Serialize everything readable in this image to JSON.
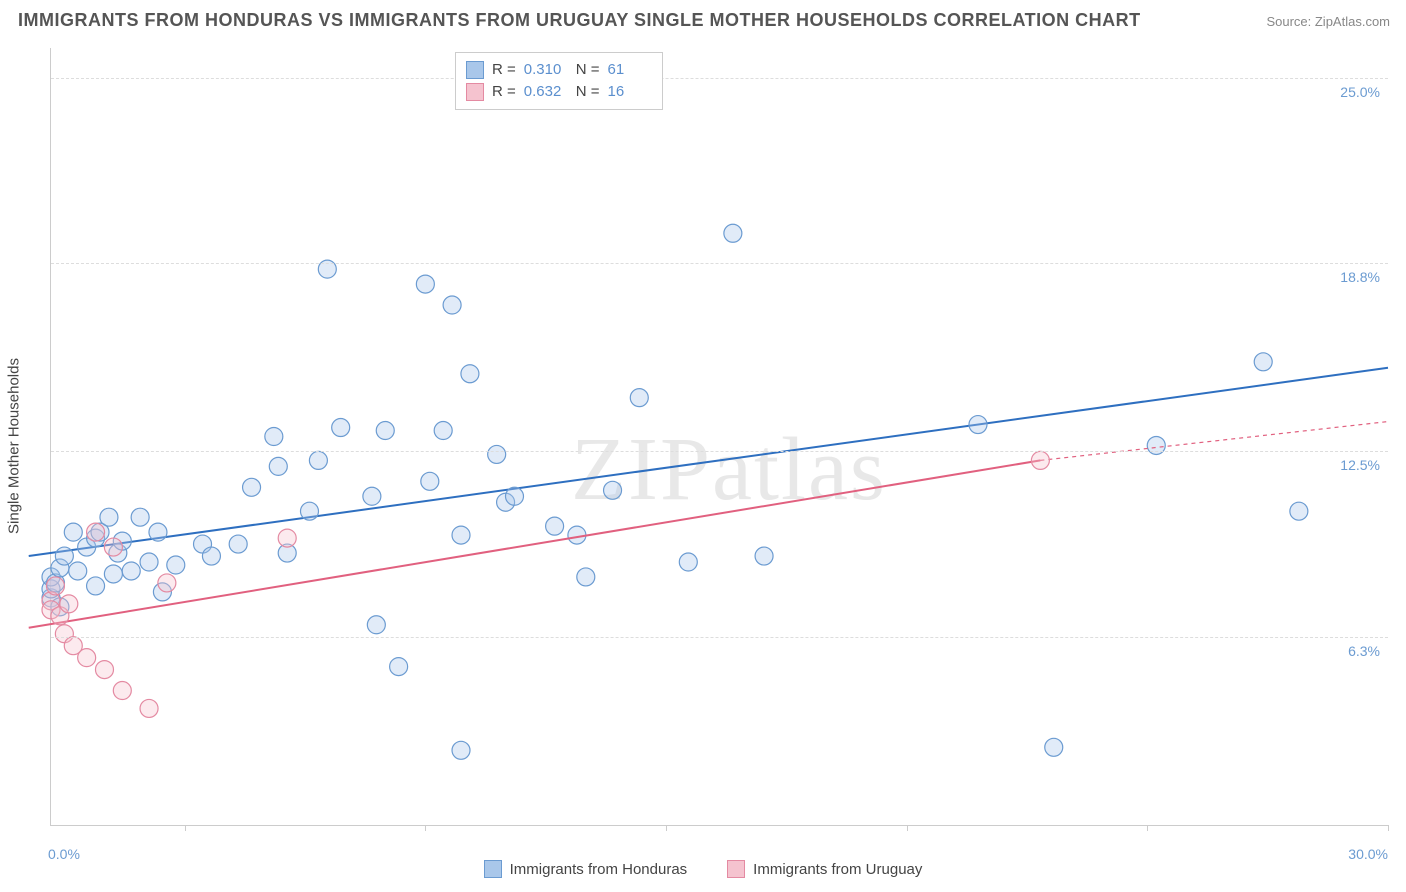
{
  "title": "IMMIGRANTS FROM HONDURAS VS IMMIGRANTS FROM URUGUAY SINGLE MOTHER HOUSEHOLDS CORRELATION CHART",
  "source": "Source: ZipAtlas.com",
  "watermark": "ZIPatlas",
  "yaxis_title": "Single Mother Households",
  "chart": {
    "type": "scatter",
    "background_color": "#ffffff",
    "grid_color": "#dddddd",
    "axis_color": "#cccccc",
    "xlim": [
      0,
      30
    ],
    "ylim": [
      0,
      26
    ],
    "xtick_positions": [
      3.0,
      8.4,
      13.8,
      19.2,
      24.6,
      30.0
    ],
    "yticks": [
      {
        "v": 6.3,
        "label": "6.3%"
      },
      {
        "v": 12.5,
        "label": "12.5%"
      },
      {
        "v": 18.8,
        "label": "18.8%"
      },
      {
        "v": 25.0,
        "label": "25.0%"
      }
    ],
    "xlim_labels": {
      "min": "0.0%",
      "max": "30.0%"
    },
    "marker_radius": 9,
    "marker_fill_opacity": 0.35,
    "marker_stroke_width": 1.2,
    "line_width": 2,
    "series": [
      {
        "name": "Immigrants from Honduras",
        "color_fill": "#a9c7ea",
        "color_stroke": "#6b9bd1",
        "line_color": "#2e6fc0",
        "R": "0.310",
        "N": "61",
        "trend": {
          "x1": -0.5,
          "y1": 9.0,
          "x2": 30.0,
          "y2": 15.3,
          "dash_from_x": 30.0
        },
        "points": [
          [
            0.0,
            7.6
          ],
          [
            0.0,
            7.9
          ],
          [
            0.0,
            8.3
          ],
          [
            0.1,
            8.1
          ],
          [
            0.2,
            7.3
          ],
          [
            0.2,
            8.6
          ],
          [
            0.3,
            9.0
          ],
          [
            0.5,
            9.8
          ],
          [
            0.6,
            8.5
          ],
          [
            0.8,
            9.3
          ],
          [
            1.0,
            9.6
          ],
          [
            1.0,
            8.0
          ],
          [
            1.1,
            9.8
          ],
          [
            1.3,
            10.3
          ],
          [
            1.4,
            8.4
          ],
          [
            1.5,
            9.1
          ],
          [
            1.6,
            9.5
          ],
          [
            1.8,
            8.5
          ],
          [
            2.0,
            10.3
          ],
          [
            2.2,
            8.8
          ],
          [
            2.4,
            9.8
          ],
          [
            2.5,
            7.8
          ],
          [
            2.8,
            8.7
          ],
          [
            3.4,
            9.4
          ],
          [
            3.6,
            9.0
          ],
          [
            4.2,
            9.4
          ],
          [
            4.5,
            11.3
          ],
          [
            5.0,
            13.0
          ],
          [
            5.1,
            12.0
          ],
          [
            5.3,
            9.1
          ],
          [
            5.8,
            10.5
          ],
          [
            6.0,
            12.2
          ],
          [
            6.2,
            18.6
          ],
          [
            6.5,
            13.3
          ],
          [
            7.2,
            11.0
          ],
          [
            7.3,
            6.7
          ],
          [
            7.5,
            13.2
          ],
          [
            7.8,
            5.3
          ],
          [
            8.4,
            18.1
          ],
          [
            8.5,
            11.5
          ],
          [
            8.8,
            13.2
          ],
          [
            9.0,
            17.4
          ],
          [
            9.2,
            9.7
          ],
          [
            9.2,
            2.5
          ],
          [
            9.4,
            15.1
          ],
          [
            10.0,
            12.4
          ],
          [
            10.2,
            10.8
          ],
          [
            10.4,
            11.0
          ],
          [
            11.3,
            10.0
          ],
          [
            11.8,
            9.7
          ],
          [
            12.0,
            8.3
          ],
          [
            12.6,
            11.2
          ],
          [
            13.2,
            14.3
          ],
          [
            14.3,
            8.8
          ],
          [
            15.3,
            19.8
          ],
          [
            16.0,
            9.0
          ],
          [
            20.8,
            13.4
          ],
          [
            22.5,
            2.6
          ],
          [
            24.8,
            12.7
          ],
          [
            27.2,
            15.5
          ],
          [
            28.0,
            10.5
          ]
        ]
      },
      {
        "name": "Immigrants from Uruguay",
        "color_fill": "#f5c3cf",
        "color_stroke": "#e48aa2",
        "line_color": "#e1607f",
        "R": "0.632",
        "N": "16",
        "trend": {
          "x1": -0.5,
          "y1": 6.6,
          "x2": 22.2,
          "y2": 12.2,
          "dash_from_x": 22.2,
          "dash_to": [
            30.0,
            13.5
          ]
        },
        "points": [
          [
            0.0,
            7.5
          ],
          [
            0.0,
            7.2
          ],
          [
            0.1,
            8.0
          ],
          [
            0.2,
            7.0
          ],
          [
            0.3,
            6.4
          ],
          [
            0.4,
            7.4
          ],
          [
            0.5,
            6.0
          ],
          [
            0.8,
            5.6
          ],
          [
            1.0,
            9.8
          ],
          [
            1.2,
            5.2
          ],
          [
            1.4,
            9.3
          ],
          [
            1.6,
            4.5
          ],
          [
            2.2,
            3.9
          ],
          [
            2.6,
            8.1
          ],
          [
            5.3,
            9.6
          ],
          [
            22.2,
            12.2
          ]
        ]
      }
    ]
  },
  "legend_top": {
    "rows": [
      {
        "swatch_fill": "#a9c7ea",
        "swatch_stroke": "#6b9bd1",
        "R": "0.310",
        "N": "61"
      },
      {
        "swatch_fill": "#f5c3cf",
        "swatch_stroke": "#e48aa2",
        "R": "0.632",
        "N": "16"
      }
    ]
  },
  "legend_bottom": {
    "items": [
      {
        "swatch_fill": "#a9c7ea",
        "swatch_stroke": "#6b9bd1",
        "label": "Immigrants from Honduras"
      },
      {
        "swatch_fill": "#f5c3cf",
        "swatch_stroke": "#e48aa2",
        "label": "Immigrants from Uruguay"
      }
    ]
  },
  "fontsize": {
    "title": 18,
    "axis": 15,
    "tick": 14,
    "legend": 15,
    "watermark": 90
  }
}
